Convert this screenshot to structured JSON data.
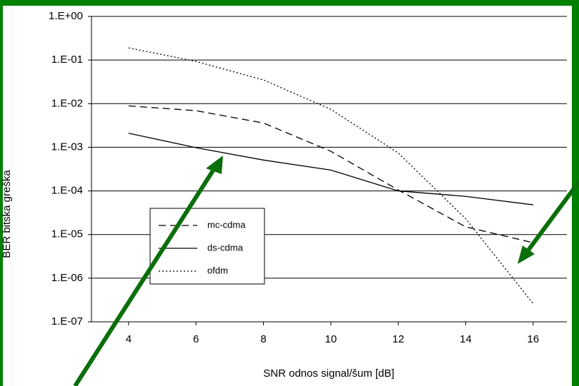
{
  "chart_data": {
    "type": "line",
    "x_label": "SNR odnos signal/šum [dB]",
    "y_label": "BER  bitska greška",
    "x": [
      4,
      6,
      8,
      10,
      12,
      14,
      16
    ],
    "series": [
      {
        "name": "mc-cdma",
        "color": "#000000",
        "dash": "10 6",
        "values": [
          0.0089,
          0.0069,
          0.0036,
          0.00081,
          0.000105,
          1.5e-05,
          6.5e-06
        ]
      },
      {
        "name": "ds-cdma",
        "color": "#000000",
        "dash": "none",
        "values": [
          0.0021,
          0.00098,
          0.00051,
          0.0003,
          0.0001,
          7.5e-05,
          4.8e-05
        ]
      },
      {
        "name": "ofdm",
        "color": "#000000",
        "dash": "2 3",
        "values": [
          0.19,
          0.093,
          0.035,
          0.0074,
          0.00074,
          2.3e-05,
          2.6e-07
        ]
      }
    ],
    "xlim": [
      2.9,
      17
    ],
    "xticks": [
      4,
      6,
      8,
      10,
      12,
      14,
      16
    ],
    "ylim": [
      1e-07,
      1
    ],
    "yticks": [
      {
        "value": 1,
        "label": "1.E+00"
      },
      {
        "value": 0.1,
        "label": "1.E-01"
      },
      {
        "value": 0.01,
        "label": "1.E-02"
      },
      {
        "value": 0.001,
        "label": "1.E-03"
      },
      {
        "value": 0.0001,
        "label": "1.E-04"
      },
      {
        "value": 1e-05,
        "label": "1.E-05"
      },
      {
        "value": 1e-06,
        "label": "1.E-06"
      },
      {
        "value": 1e-07,
        "label": "1.E-07"
      }
    ],
    "log_y": true,
    "grid": true
  }
}
